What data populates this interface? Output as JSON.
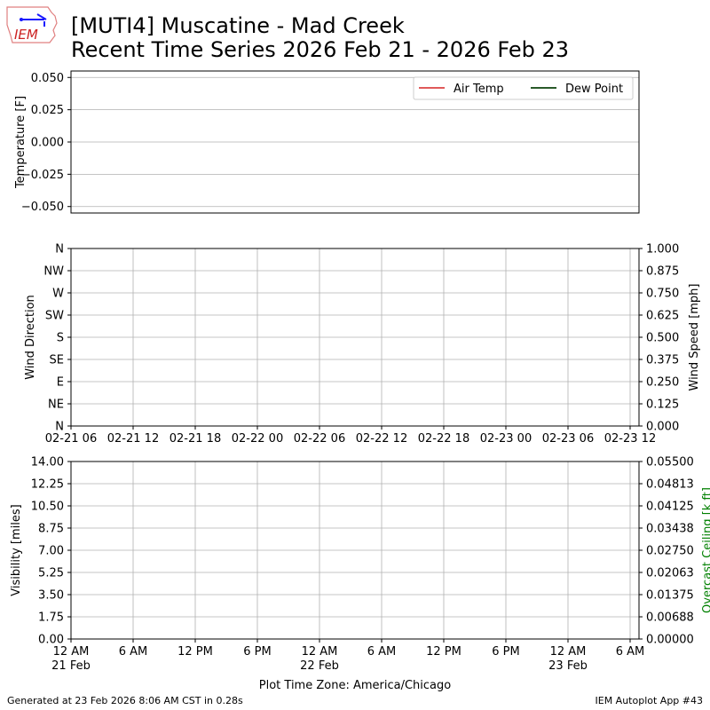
{
  "header": {
    "logo_text": "IEM",
    "title_line1": "[MUTI4] Muscatine - Mad Creek",
    "title_line2": "Recent Time Series 2026 Feb 21 - 2026 Feb 23"
  },
  "footer": {
    "generated": "Generated at 23 Feb 2026 8:06 AM CST in 0.28s",
    "app": "IEM Autoplot App #43"
  },
  "chart_data": [
    {
      "type": "line",
      "ylabel": "Temperature [F]",
      "ylim": [
        -0.055,
        0.055
      ],
      "yticks": [
        "0.050",
        "0.025",
        "0.000",
        "−0.025",
        "−0.050"
      ],
      "yvals": [
        0.05,
        0.025,
        0,
        -0.025,
        -0.05
      ],
      "grid": "horizontal",
      "legend": {
        "placement": "top-right",
        "entries": [
          {
            "name": "Air Temp",
            "color": "#e05a5a"
          },
          {
            "name": "Dew Point",
            "color": "#2a5a2a"
          }
        ]
      },
      "series": [
        {
          "name": "Air Temp",
          "values": []
        },
        {
          "name": "Dew Point",
          "values": []
        }
      ]
    },
    {
      "type": "scatter",
      "ylabel": "Wind Direction",
      "yticks": [
        "N",
        "NE",
        "E",
        "SE",
        "S",
        "SW",
        "W",
        "NW",
        "N"
      ],
      "ylim": [
        0,
        360
      ],
      "y2label": "Wind Speed [mph]",
      "y2ticks": [
        "0.000",
        "0.125",
        "0.250",
        "0.375",
        "0.500",
        "0.625",
        "0.750",
        "0.875",
        "1.000"
      ],
      "y2lim": [
        0,
        1
      ],
      "xticks": [
        "02-21 06",
        "02-21 12",
        "02-21 18",
        "02-22 00",
        "02-22 06",
        "02-22 12",
        "02-22 18",
        "02-23 00",
        "02-23 06",
        "02-23 12"
      ],
      "grid": true,
      "series": []
    },
    {
      "type": "line",
      "ylabel": "Visibility [miles]",
      "yticks": [
        "0.00",
        "1.75",
        "3.50",
        "5.25",
        "7.00",
        "8.75",
        "10.50",
        "12.25",
        "14.00"
      ],
      "ylim": [
        0,
        14
      ],
      "y2label": "Overcast Ceiling [k ft]",
      "y2label_color": "#008000",
      "y2ticks": [
        "0.00000",
        "0.00688",
        "0.01375",
        "0.02063",
        "0.02750",
        "0.03438",
        "0.04125",
        "0.04813",
        "0.05500"
      ],
      "y2lim": [
        0,
        0.055
      ],
      "xticks": [
        "12 AM\n21 Feb",
        "6 AM",
        "12 PM",
        "6 PM",
        "12 AM\n22 Feb",
        "6 AM",
        "12 PM",
        "6 PM",
        "12 AM\n23 Feb",
        "6 AM"
      ],
      "xlabel": "Plot Time Zone: America/Chicago",
      "grid": true,
      "series": []
    }
  ]
}
